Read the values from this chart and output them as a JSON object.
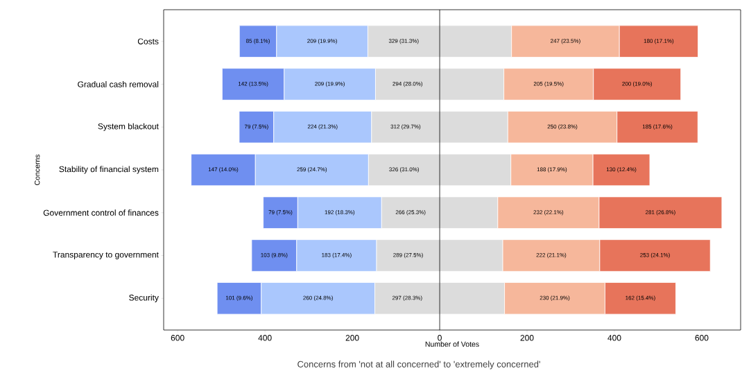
{
  "chart_data": {
    "type": "bar",
    "orientation": "horizontal",
    "title": "Concerns from 'not at all concerned' to 'extremely concerned'",
    "xlabel": "Number of Votes",
    "ylabel": "Concerns",
    "categories": [
      "Costs",
      "Gradual cash removal",
      "System blackout",
      "Stability of financial system",
      "Government control of finances",
      "Transparency to government",
      "Security"
    ],
    "series": [
      {
        "color": "#6f8ff0",
        "values": [
          85,
          142,
          79,
          147,
          79,
          103,
          101
        ],
        "base": [
          -458.5,
          -498,
          -459,
          -569,
          -404,
          -430.5,
          -509.5
        ],
        "value_labels": [
          "85 (8.1%)",
          "142 (13.5%)",
          "79 (7.5%)",
          "147 (14.0%)",
          "79 (7.5%)",
          "103 (9.8%)",
          "101 (9.6%)"
        ]
      },
      {
        "color": "#aac7fd",
        "values": [
          209,
          209,
          224,
          259,
          192,
          183,
          260
        ],
        "base": [
          -373.5,
          -356,
          -380,
          -422,
          -325,
          -327.5,
          -408.5
        ],
        "value_labels": [
          "209 (19.9%)",
          "209 (19.9%)",
          "224 (21.3%)",
          "259 (24.7%)",
          "192 (18.3%)",
          "183 (17.4%)",
          "260 (24.8%)"
        ]
      },
      {
        "color": "#dcdcdc",
        "values": [
          329,
          294,
          312,
          326,
          266,
          289,
          297
        ],
        "base": [
          -164.5,
          -147,
          -156,
          -163,
          -133,
          -144.5,
          -148.5
        ],
        "value_labels": [
          "329 (31.3%)",
          "294 (28.0%)",
          "312 (29.7%)",
          "326 (31.0%)",
          "266 (25.3%)",
          "289 (27.5%)",
          "297 (28.3%)"
        ]
      },
      {
        "color": "#f6b79b",
        "values": [
          247,
          205,
          250,
          188,
          232,
          222,
          230
        ],
        "base": [
          164.5,
          147,
          156,
          163,
          133,
          144.5,
          148.5
        ],
        "value_labels": [
          "247 (23.5%)",
          "205 (19.5%)",
          "250 (23.8%)",
          "188 (17.9%)",
          "232 (22.1%)",
          "222 (21.1%)",
          "230 (21.9%)"
        ]
      },
      {
        "color": "#e7745b",
        "values": [
          180,
          200,
          185,
          130,
          281,
          253,
          162
        ],
        "base": [
          411.5,
          352,
          406,
          351,
          365,
          366.5,
          378.5
        ],
        "value_labels": [
          "180 (17.1%)",
          "200 (19.0%)",
          "185 (17.6%)",
          "130 (12.4%)",
          "281 (26.8%)",
          "253 (24.1%)",
          "162 (15.4%)"
        ]
      }
    ],
    "xlim": [
      -632,
      689
    ],
    "xticks": [
      {
        "value": -600,
        "label": "600"
      },
      {
        "value": -400,
        "label": "400"
      },
      {
        "value": -200,
        "label": "200"
      },
      0,
      200,
      400,
      600
    ],
    "ref_lines": [
      {
        "axis": "x",
        "value": 0,
        "color": "#000000"
      }
    ],
    "grid": false
  }
}
